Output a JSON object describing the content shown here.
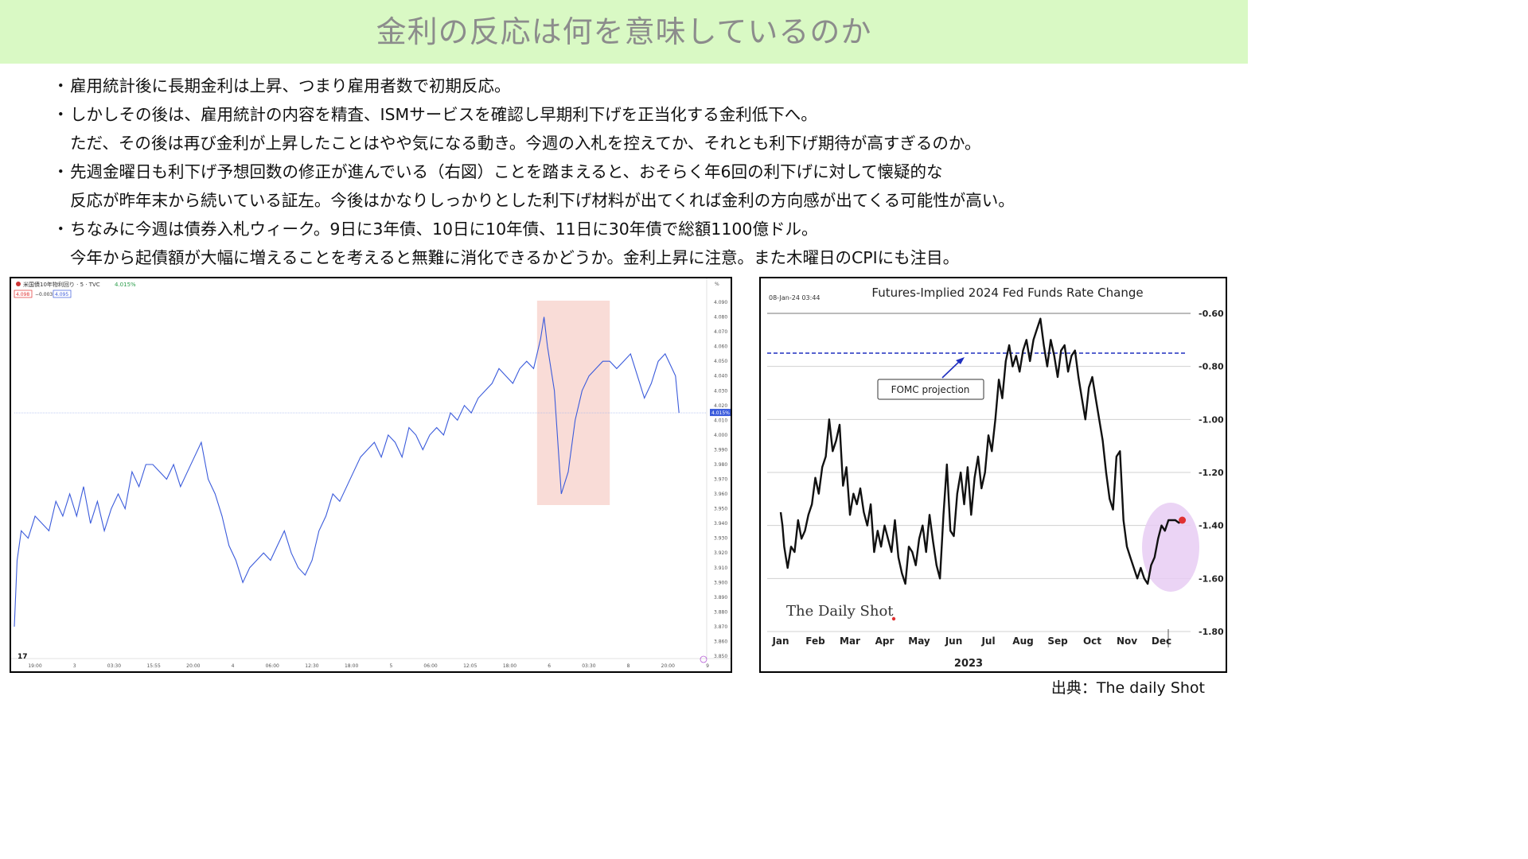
{
  "title": "金利の反応は何を意味しているのか",
  "bullets": [
    {
      "marker": "・",
      "lines": [
        "雇用統計後に長期金利は上昇、つまり雇用者数で初期反応。"
      ]
    },
    {
      "marker": "・",
      "lines": [
        "しかしその後は、雇用統計の内容を精査、ISMサービスを確認し早期利下げを正当化する金利低下へ。",
        "ただ、その後は再び金利が上昇したことはやや気になる動き。今週の入札を控えてか、それとも利下げ期待が高すぎるのか。"
      ]
    },
    {
      "marker": "・",
      "lines": [
        "先週金曜日も利下げ予想回数の修正が進んでいる（右図）ことを踏まえると、おそらく年6回の利下げに対して懐疑的な",
        "反応が昨年末から続いている証左。今後はかなりしっかりとした利下げ材料が出てくれば金利の方向感が出てくる可能性が高い。"
      ]
    },
    {
      "marker": "・",
      "lines": [
        "ちなみに今週は債券入札ウィーク。9日に3年債、10日に10年債、11日に30年債で総額1100億ドル。",
        "今年から起債額が大幅に増えることを考えると無難に消化できるかどうか。金利上昇に注意。また木曜日のCPIにも注目。"
      ]
    }
  ],
  "source": "出典：The daily Shot",
  "chart_data": [
    {
      "type": "line",
      "header": {
        "symbol": "米国債10年物利回り · 5 · TVC",
        "last": "4.015%",
        "bid": "4.098",
        "change": "−0.003",
        "ask": "4.095",
        "unit": "%"
      },
      "x_ticks": [
        "19:00",
        "3",
        "03:30",
        "15:55",
        "20:00",
        "4",
        "06:00",
        "12:30",
        "18:00",
        "5",
        "06:00",
        "12:05",
        "18:00",
        "6",
        "03:30",
        "8",
        "20:00",
        "9"
      ],
      "y_ticks": [
        "4.090",
        "4.080",
        "4.070",
        "4.060",
        "4.050",
        "4.040",
        "4.030",
        "4.020",
        "4.010",
        "4.000",
        "3.990",
        "3.980",
        "3.970",
        "3.960",
        "3.950",
        "3.940",
        "3.930",
        "3.920",
        "3.910",
        "3.900",
        "3.890",
        "3.880",
        "3.870",
        "3.860",
        "3.850"
      ],
      "ylim": [
        3.85,
        4.09
      ],
      "current_value_label": "4.015%",
      "current_value": 4.015,
      "highlight_x_index_range": [
        0.755,
        0.86
      ],
      "highlight_color": "#f8d6d0",
      "line_color": "#3b5bdb",
      "series": [
        {
          "x": [
            0,
            0.004,
            0.01,
            0.02,
            0.03,
            0.04,
            0.05,
            0.06,
            0.07,
            0.08,
            0.09,
            0.1,
            0.11,
            0.12,
            0.13,
            0.14,
            0.15,
            0.16,
            0.17,
            0.18,
            0.19,
            0.2,
            0.21,
            0.22,
            0.23,
            0.24,
            0.25,
            0.26,
            0.27,
            0.28,
            0.29,
            0.3,
            0.31,
            0.32,
            0.33,
            0.34,
            0.35,
            0.36,
            0.37,
            0.38,
            0.39,
            0.4,
            0.41,
            0.42,
            0.43,
            0.44,
            0.45,
            0.46,
            0.47,
            0.48,
            0.49,
            0.5,
            0.51,
            0.52,
            0.53,
            0.54,
            0.55,
            0.56,
            0.57,
            0.58,
            0.59,
            0.6,
            0.61,
            0.62,
            0.63,
            0.64,
            0.65,
            0.66,
            0.67,
            0.68,
            0.69,
            0.7,
            0.71,
            0.72,
            0.73,
            0.74,
            0.75,
            0.76,
            0.765,
            0.77,
            0.78,
            0.79,
            0.8,
            0.81,
            0.82,
            0.83,
            0.84,
            0.85,
            0.86,
            0.87,
            0.88,
            0.89,
            0.9,
            0.91,
            0.92,
            0.93,
            0.94,
            0.95,
            0.955,
            0.96
          ],
          "values": [
            3.87,
            3.915,
            3.935,
            3.93,
            3.945,
            3.94,
            3.935,
            3.955,
            3.945,
            3.96,
            3.945,
            3.965,
            3.94,
            3.955,
            3.935,
            3.95,
            3.96,
            3.95,
            3.975,
            3.965,
            3.98,
            3.98,
            3.975,
            3.97,
            3.98,
            3.965,
            3.975,
            3.985,
            3.995,
            3.97,
            3.96,
            3.945,
            3.925,
            3.915,
            3.9,
            3.91,
            3.915,
            3.92,
            3.915,
            3.925,
            3.935,
            3.92,
            3.91,
            3.905,
            3.915,
            3.935,
            3.945,
            3.96,
            3.955,
            3.965,
            3.975,
            3.985,
            3.99,
            3.995,
            3.985,
            4.0,
            3.995,
            3.985,
            4.005,
            4.0,
            3.99,
            4.0,
            4.005,
            4.0,
            4.015,
            4.01,
            4.02,
            4.015,
            4.025,
            4.03,
            4.035,
            4.045,
            4.04,
            4.035,
            4.045,
            4.05,
            4.045,
            4.065,
            4.08,
            4.06,
            4.03,
            3.96,
            3.975,
            4.01,
            4.03,
            4.04,
            4.045,
            4.05,
            4.05,
            4.045,
            4.05,
            4.055,
            4.04,
            4.025,
            4.035,
            4.05,
            4.055,
            4.045,
            4.04,
            4.015
          ]
        }
      ]
    },
    {
      "type": "line",
      "title": "Futures-Implied 2024 Fed Funds Rate Change",
      "timestamp": "08-Jan-24 03:44",
      "categories": [
        "Jan",
        "Feb",
        "Mar",
        "Apr",
        "May",
        "Jun",
        "Jul",
        "Aug",
        "Sep",
        "Oct",
        "Nov",
        "Dec"
      ],
      "xlabel": "2023",
      "y_ticks": [
        "-0.60",
        "-0.80",
        "-1.00",
        "-1.20",
        "-1.40",
        "-1.60",
        "-1.80"
      ],
      "ylim": [
        -1.8,
        -0.6
      ],
      "annotation": "FOMC projection",
      "fomc_projection": -0.75,
      "watermark": "The Daily Shot",
      "series": [
        {
          "x": [
            0.0,
            0.05,
            0.1,
            0.15,
            0.2,
            0.3,
            0.4,
            0.5,
            0.6,
            0.7,
            0.8,
            0.9,
            1.0,
            1.1,
            1.2,
            1.3,
            1.4,
            1.5,
            1.6,
            1.7,
            1.8,
            1.9,
            2.0,
            2.1,
            2.2,
            2.3,
            2.4,
            2.5,
            2.6,
            2.7,
            2.8,
            2.9,
            3.0,
            3.1,
            3.2,
            3.3,
            3.4,
            3.5,
            3.6,
            3.7,
            3.8,
            3.9,
            4.0,
            4.1,
            4.2,
            4.3,
            4.4,
            4.5,
            4.6,
            4.7,
            4.8,
            4.9,
            5.0,
            5.1,
            5.2,
            5.3,
            5.4,
            5.5,
            5.6,
            5.7,
            5.8,
            5.9,
            6.0,
            6.1,
            6.2,
            6.3,
            6.4,
            6.5,
            6.6,
            6.7,
            6.8,
            6.9,
            7.0,
            7.1,
            7.2,
            7.3,
            7.4,
            7.5,
            7.6,
            7.7,
            7.8,
            7.9,
            8.0,
            8.1,
            8.2,
            8.3,
            8.4,
            8.5,
            8.6,
            8.7,
            8.8,
            8.9,
            9.0,
            9.1,
            9.2,
            9.3,
            9.4,
            9.5,
            9.6,
            9.7,
            9.8,
            9.9,
            10.0,
            10.1,
            10.2,
            10.3,
            10.4,
            10.5,
            10.6,
            10.7,
            10.8,
            10.9,
            11.0,
            11.1,
            11.2,
            11.3,
            11.4,
            11.5,
            11.6
          ],
          "values": [
            -1.35,
            -1.4,
            -1.48,
            -1.52,
            -1.56,
            -1.48,
            -1.5,
            -1.38,
            -1.45,
            -1.42,
            -1.36,
            -1.32,
            -1.22,
            -1.28,
            -1.18,
            -1.14,
            -1.0,
            -1.12,
            -1.08,
            -1.02,
            -1.25,
            -1.18,
            -1.36,
            -1.28,
            -1.32,
            -1.26,
            -1.35,
            -1.4,
            -1.32,
            -1.5,
            -1.42,
            -1.48,
            -1.4,
            -1.45,
            -1.5,
            -1.38,
            -1.52,
            -1.58,
            -1.62,
            -1.48,
            -1.5,
            -1.55,
            -1.45,
            -1.4,
            -1.5,
            -1.36,
            -1.46,
            -1.55,
            -1.6,
            -1.36,
            -1.17,
            -1.42,
            -1.44,
            -1.28,
            -1.2,
            -1.32,
            -1.18,
            -1.36,
            -1.22,
            -1.14,
            -1.26,
            -1.2,
            -1.06,
            -1.12,
            -1.0,
            -0.85,
            -0.92,
            -0.78,
            -0.72,
            -0.8,
            -0.76,
            -0.82,
            -0.74,
            -0.7,
            -0.78,
            -0.7,
            -0.66,
            -0.62,
            -0.72,
            -0.8,
            -0.7,
            -0.76,
            -0.84,
            -0.74,
            -0.72,
            -0.82,
            -0.76,
            -0.74,
            -0.84,
            -0.92,
            -1.0,
            -0.88,
            -0.84,
            -0.92,
            -1.0,
            -1.08,
            -1.2,
            -1.3,
            -1.34,
            -1.14,
            -1.12,
            -1.38,
            -1.48,
            -1.52,
            -1.56,
            -1.6,
            -1.56,
            -1.6,
            -1.62,
            -1.55,
            -1.52,
            -1.45,
            -1.4,
            -1.42,
            -1.38,
            -1.38,
            -1.38,
            -1.39,
            -1.38
          ]
        }
      ],
      "highlight_color": "#e7cdf3"
    }
  ]
}
